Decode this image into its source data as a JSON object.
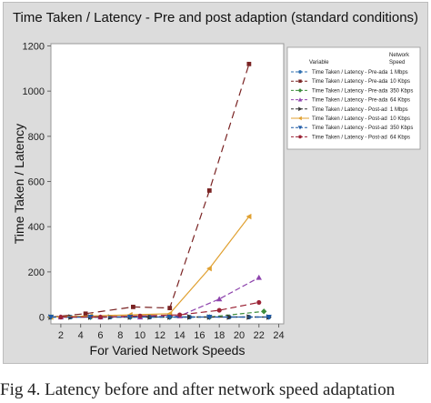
{
  "chart_data": {
    "type": "line",
    "title": "Time Taken  / Latency - Pre and post adaption (standard conditions)",
    "xlabel": "For Varied Network Speeds",
    "ylabel": "Time Taken / Latency",
    "xlim": [
      1,
      24.5
    ],
    "ylim": [
      -30,
      1210
    ],
    "xticks": [
      2,
      4,
      6,
      8,
      10,
      12,
      14,
      16,
      18,
      20,
      22,
      24
    ],
    "yticks": [
      0,
      200,
      400,
      600,
      800,
      1000,
      1200
    ],
    "grid": false,
    "legend": {
      "placement": "top-right",
      "header_variable": "Variable",
      "header_network": "Network",
      "header_speed": "Speed"
    },
    "series": [
      {
        "name": "Time Taken  / Latency - Pre-ada",
        "speed": "1 Mbps",
        "color": "#2e6fb0",
        "marker": "circle",
        "dash": "4 3",
        "x": [
          1,
          3,
          5,
          7,
          9,
          11,
          13,
          15,
          17,
          19,
          21,
          23
        ],
        "y": [
          0,
          0,
          0,
          0,
          0,
          0,
          0,
          0,
          0,
          0,
          0,
          0
        ]
      },
      {
        "name": "Time Taken  / Latency - Pre-ada",
        "speed": "10 Kbps",
        "color": "#7a2323",
        "marker": "square",
        "dash": "8 5",
        "x": [
          1,
          4.5,
          9.3,
          13,
          17,
          21
        ],
        "y": [
          0,
          15,
          45,
          40,
          560,
          1120
        ]
      },
      {
        "name": "Time Taken  / Latency - Pre-ada",
        "speed": "350 Kbps",
        "color": "#3c8d3c",
        "marker": "diamond",
        "dash": "5 3",
        "x": [
          1,
          5,
          9,
          13,
          17,
          22.5
        ],
        "y": [
          0,
          0,
          0,
          0,
          0,
          25
        ]
      },
      {
        "name": "Time Taken  / Latency - Pre-ada",
        "speed": "64 Kbps",
        "color": "#8e44ad",
        "marker": "triangle-up",
        "dash": "6 3",
        "x": [
          2,
          6,
          10,
          14,
          18,
          22
        ],
        "y": [
          0,
          0,
          0,
          5,
          80,
          175
        ]
      },
      {
        "name": "Time Taken  / Latency - Post-ad",
        "speed": "1 Mbps",
        "color": "#333333",
        "marker": "triangle-right",
        "dash": "5 3",
        "x": [
          1,
          3,
          5,
          7,
          9,
          11,
          13,
          15,
          17,
          19,
          21,
          23
        ],
        "y": [
          0,
          0,
          0,
          0,
          0,
          0,
          0,
          0,
          0,
          0,
          0,
          0
        ]
      },
      {
        "name": "Time Taken  / Latency - Post-ad",
        "speed": "10 Kbps",
        "color": "#e0a030",
        "marker": "triangle-left",
        "dash": "",
        "x": [
          1,
          5,
          9,
          13,
          17,
          21
        ],
        "y": [
          0,
          5,
          10,
          15,
          215,
          445
        ]
      },
      {
        "name": "Time Taken  / Latency - Post-ad",
        "speed": "350 Kbps",
        "color": "#1f5aa6",
        "marker": "triangle-down",
        "dash": "6 3",
        "x": [
          1,
          5,
          9,
          13,
          17,
          23
        ],
        "y": [
          0,
          0,
          0,
          0,
          0,
          0
        ]
      },
      {
        "name": "Time Taken  / Latency - Post-ad",
        "speed": "64 Kbps",
        "color": "#9b2335",
        "marker": "circle",
        "dash": "7 4",
        "x": [
          2,
          6,
          10,
          14,
          18,
          22
        ],
        "y": [
          0,
          0,
          5,
          10,
          30,
          65
        ]
      }
    ]
  },
  "caption": "Fig 4. Latency before and after network speed adaptation"
}
